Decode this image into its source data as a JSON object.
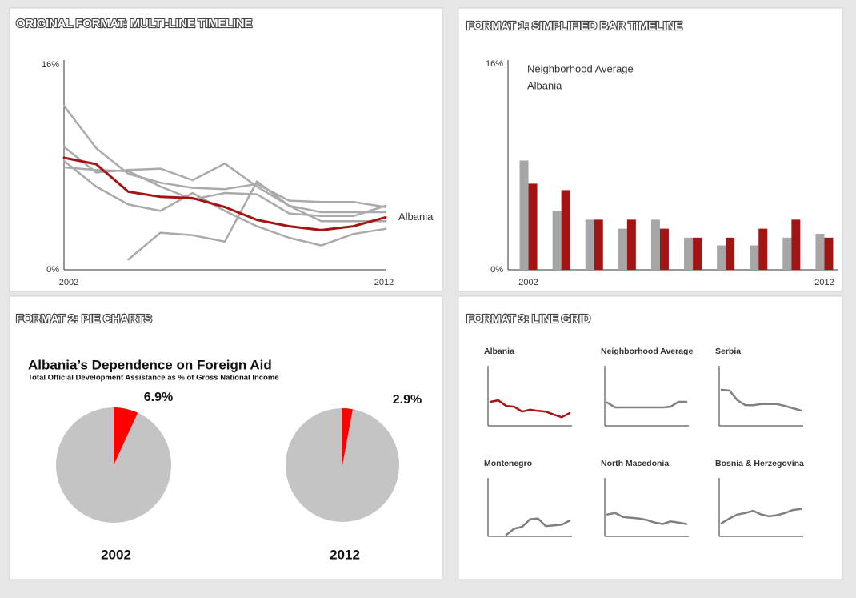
{
  "chart_data": [
    {
      "type": "line",
      "heading": "ORIGINAL FORMAT: MULTI-LINE TIMELINE",
      "x": [
        2002,
        2003,
        2004,
        2005,
        2006,
        2007,
        2008,
        2009,
        2010,
        2011,
        2012
      ],
      "xlim": [
        2002,
        2012
      ],
      "xticks": [
        2002,
        2012
      ],
      "ylim": [
        0,
        16
      ],
      "yticks": [
        {
          "value": 0,
          "label": "0%"
        },
        {
          "value": 16,
          "label": "16%"
        }
      ],
      "grid": false,
      "series": [
        {
          "color": "#aaaaaa",
          "values": [
            12.8,
            9.5,
            7.5,
            6.8,
            6.4,
            6.3,
            6.7,
            5.4,
            5.3,
            5.3,
            4.9
          ]
        },
        {
          "color": "#aaaaaa",
          "values": [
            9.6,
            7.6,
            7.8,
            7.9,
            7.0,
            8.3,
            6.5,
            5.0,
            4.5,
            4.5,
            4.5
          ]
        },
        {
          "color": "#aaaaaa",
          "values": [
            8.5,
            6.5,
            5.1,
            4.6,
            6.0,
            4.6,
            3.4,
            2.5,
            1.9,
            2.8,
            3.2
          ]
        },
        {
          "color": "#aaaaaa",
          "values": [
            null,
            null,
            0.8,
            2.9,
            2.7,
            2.2,
            6.9,
            5.0,
            3.8,
            3.8,
            3.8
          ]
        },
        {
          "color": "#aaaaaa",
          "values": [
            8.0,
            7.8,
            7.7,
            6.5,
            5.5,
            6.0,
            5.9,
            4.4,
            4.2,
            4.2,
            5.0
          ]
        },
        {
          "name": "Albania",
          "color": "#a31515",
          "values": [
            8.75,
            8.25,
            6.1,
            5.7,
            5.6,
            4.9,
            3.9,
            3.4,
            3.1,
            3.4,
            4.1
          ]
        }
      ]
    },
    {
      "type": "bar",
      "heading": "FORMAT 1: SIMPLIFIED BAR TIMELINE",
      "categories": [
        "2002",
        null,
        null,
        null,
        null,
        null,
        null,
        null,
        null,
        "2012"
      ],
      "ylim": [
        0,
        16
      ],
      "yticks": [
        {
          "value": 0,
          "label": "0%"
        },
        {
          "value": 16,
          "label": "16%"
        }
      ],
      "grid": false,
      "legend": "top-left",
      "series": [
        {
          "name": "Neighborhood Average",
          "color": "#a6a6a6",
          "values": [
            8.5,
            4.6,
            3.9,
            3.2,
            3.9,
            2.5,
            1.9,
            1.9,
            2.5,
            2.8
          ]
        },
        {
          "name": "Albania",
          "color": "#a31515",
          "values": [
            6.7,
            6.2,
            3.9,
            3.9,
            3.2,
            2.5,
            2.5,
            3.2,
            3.9,
            2.5
          ]
        }
      ]
    },
    {
      "type": "pie",
      "heading": "FORMAT 2: PIE CHARTS",
      "title": "Albania’s Dependence on Foreign Aid",
      "subtitle": "Total Official Development Assistance as % of Gross National Income",
      "categories": [
        "2002",
        "2012"
      ],
      "values": [
        6.9,
        2.9
      ],
      "value_labels": [
        "6.9%",
        "2.9%"
      ],
      "color": "#ff0000",
      "remainder_color": "#c4c4c4"
    },
    {
      "type": "small-multiples",
      "heading": "FORMAT 3: LINE GRID",
      "x": [
        2002,
        2003,
        2004,
        2005,
        2006,
        2007,
        2008,
        2009,
        2010,
        2011,
        2012
      ],
      "xlim": [
        2002,
        2012
      ],
      "ylim": [
        0,
        16
      ],
      "series": [
        {
          "name": "Albania",
          "color": "#a31515",
          "values": [
            6.4,
            6.8,
            5.3,
            5.1,
            3.8,
            4.3,
            4.0,
            3.8,
            3.0,
            2.3,
            3.4
          ]
        },
        {
          "name": "Neighborhood Average",
          "color": "#808080",
          "values": [
            6.2,
            4.9,
            4.9,
            4.9,
            4.9,
            4.9,
            4.9,
            4.9,
            5.1,
            6.4,
            6.4
          ]
        },
        {
          "name": "Serbia",
          "color": "#808080",
          "values": [
            9.6,
            9.4,
            6.8,
            5.5,
            5.5,
            5.8,
            5.8,
            5.8,
            5.3,
            4.7,
            4.1
          ]
        },
        {
          "name": "Montenegro",
          "color": "#808080",
          "values": [
            null,
            null,
            0.4,
            2.1,
            2.6,
            4.7,
            4.9,
            2.8,
            3.0,
            3.2,
            4.3
          ]
        },
        {
          "name": "North Macedonia",
          "color": "#808080",
          "values": [
            6.0,
            6.4,
            5.3,
            5.1,
            4.9,
            4.5,
            3.8,
            3.4,
            4.1,
            3.8,
            3.4
          ]
        },
        {
          "name": "Bosnia & Herzegovina",
          "color": "#808080",
          "values": [
            3.6,
            4.9,
            6.0,
            6.4,
            7.0,
            6.0,
            5.5,
            5.8,
            6.4,
            7.2,
            7.5
          ]
        }
      ]
    }
  ]
}
